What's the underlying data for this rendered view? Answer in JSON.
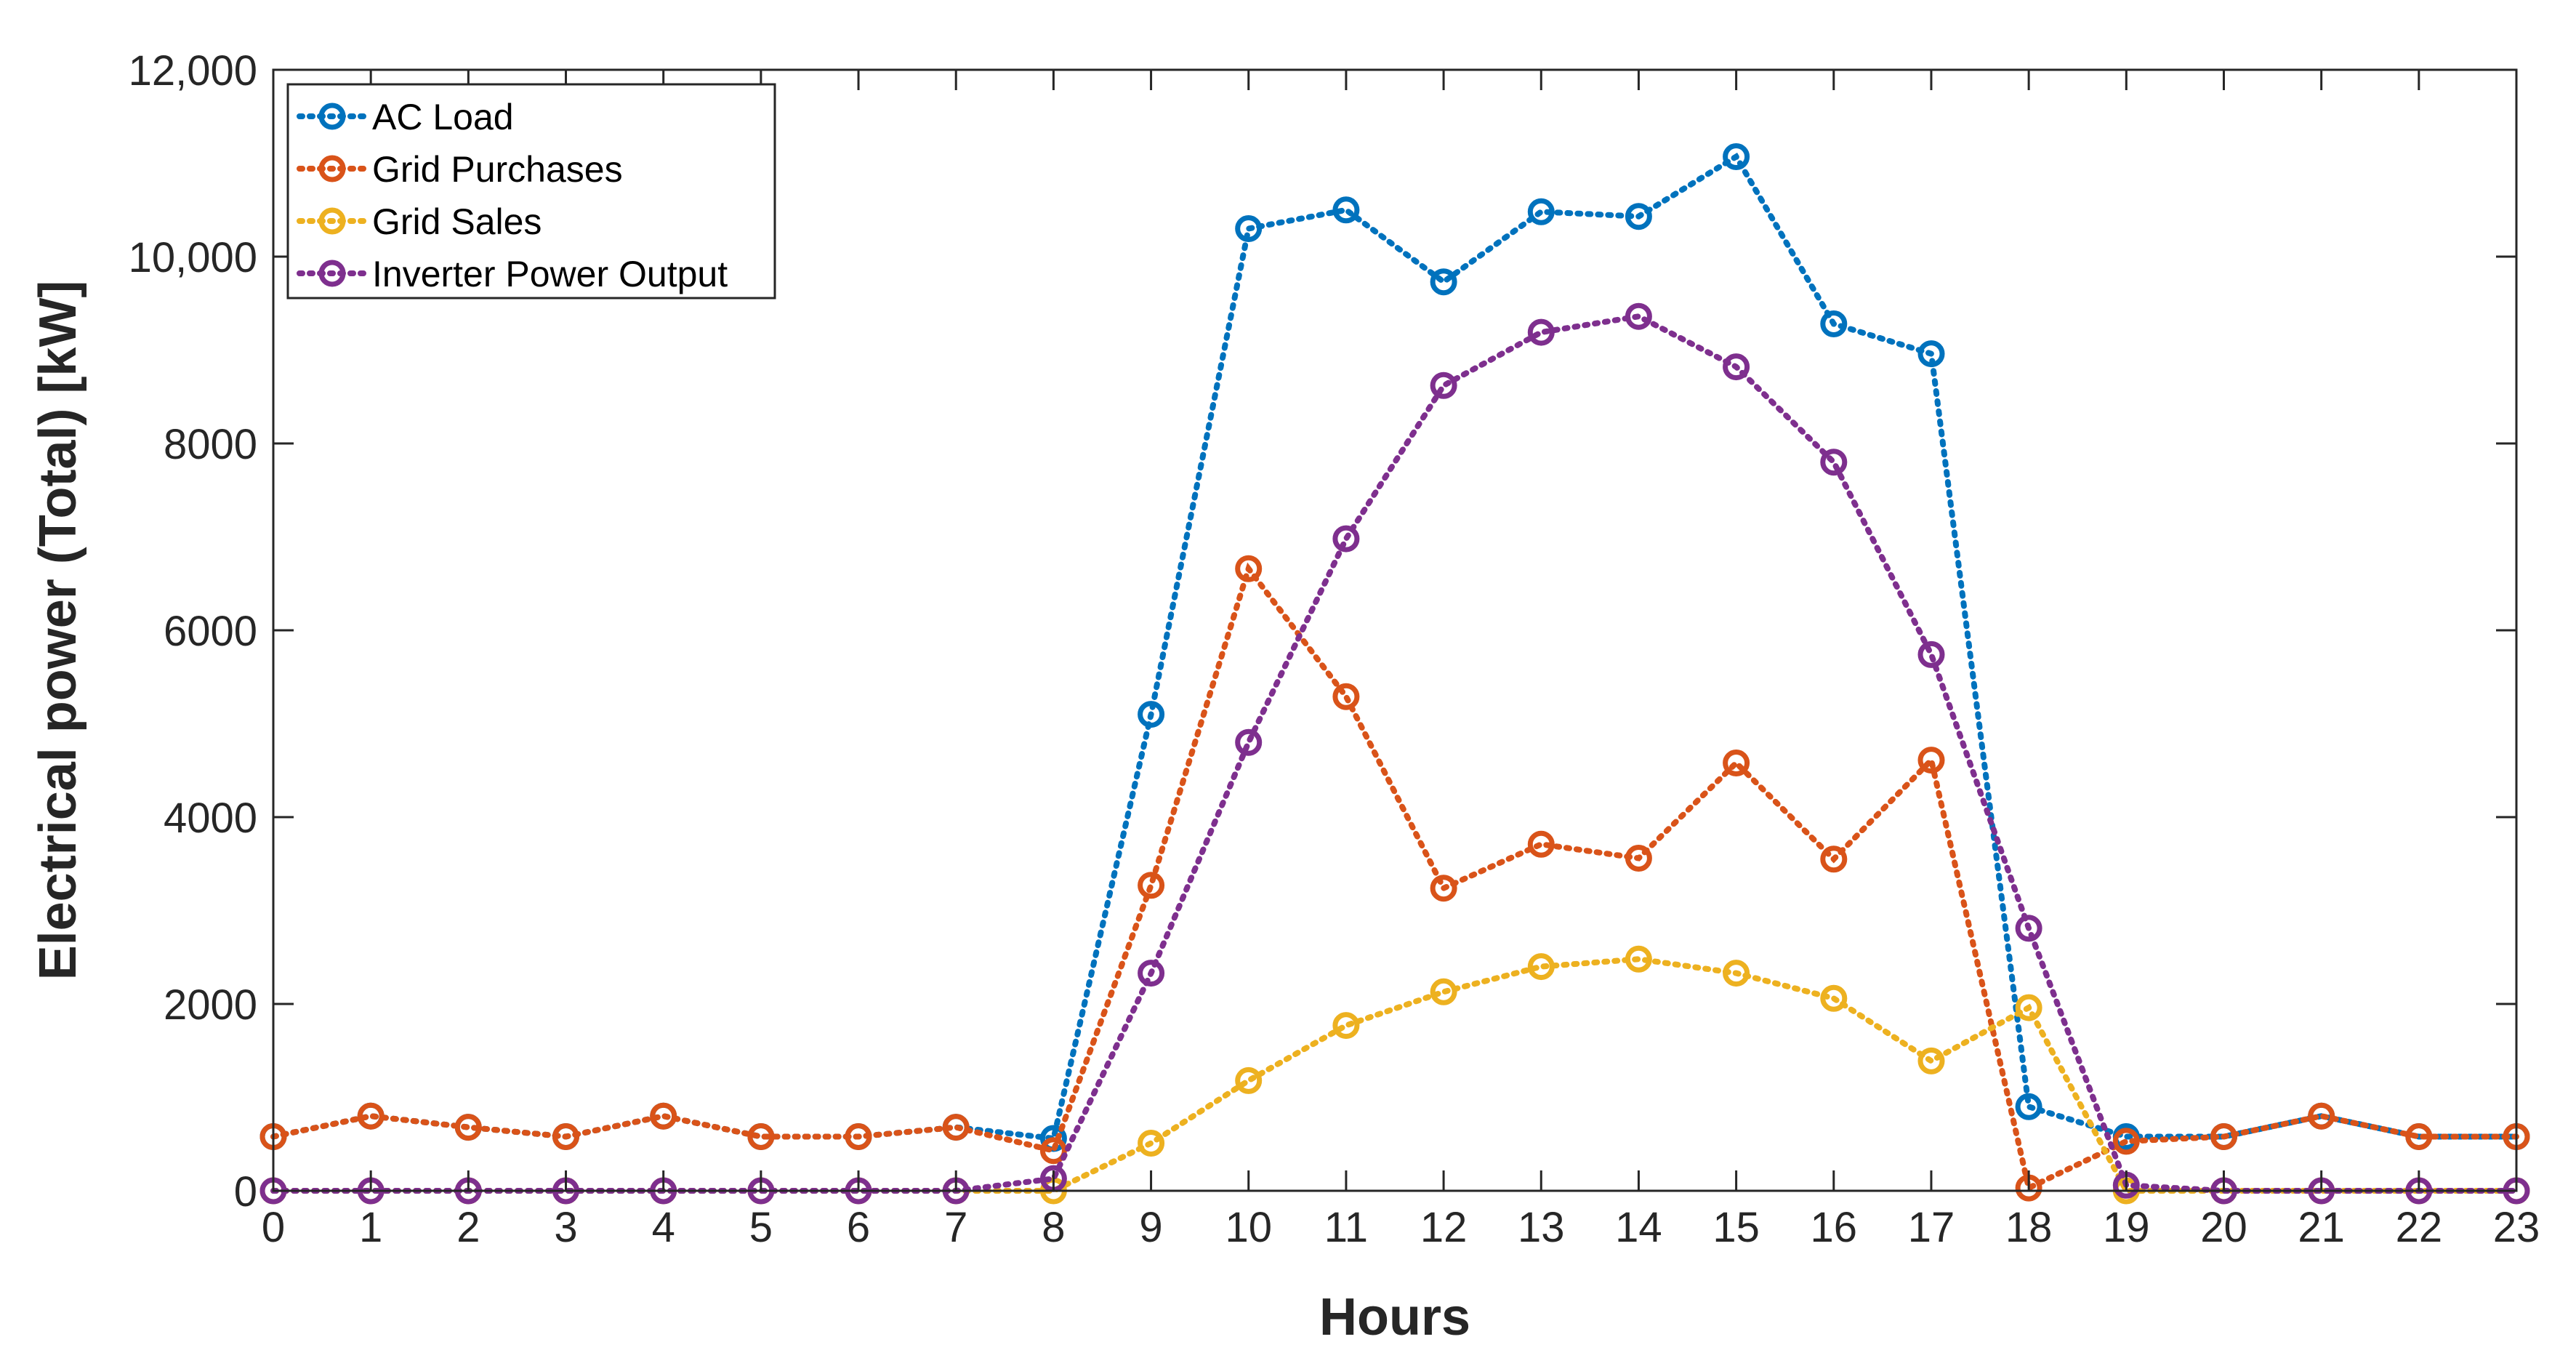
{
  "chart_data": {
    "type": "line",
    "xlabel": "Hours",
    "ylabel": "Electrical power (Total) [kW]",
    "xlim": [
      0,
      23
    ],
    "ylim": [
      0,
      12000
    ],
    "x": [
      0,
      1,
      2,
      3,
      4,
      5,
      6,
      7,
      8,
      9,
      10,
      11,
      12,
      13,
      14,
      15,
      16,
      17,
      18,
      19,
      20,
      21,
      22,
      23
    ],
    "x_tick_labels": [
      "0",
      "1",
      "2",
      "3",
      "4",
      "5",
      "6",
      "7",
      "8",
      "9",
      "10",
      "11",
      "12",
      "13",
      "14",
      "15",
      "16",
      "17",
      "18",
      "19",
      "20",
      "21",
      "22",
      "23"
    ],
    "y_ticks": [
      0,
      2000,
      4000,
      6000,
      8000,
      10000,
      12000
    ],
    "y_tick_labels": [
      "0",
      "2000",
      "4000",
      "6000",
      "8000",
      "10,000",
      "12,000"
    ],
    "grid": false,
    "legend_position": "top-left",
    "marker": "circle",
    "line_style": "dotted",
    "series": [
      {
        "name": "AC Load",
        "color": "#0072BD",
        "values": [
          580,
          800,
          680,
          580,
          800,
          580,
          580,
          680,
          560,
          5100,
          10300,
          10500,
          9730,
          10480,
          10430,
          11070,
          9280,
          8960,
          900,
          580,
          580,
          800,
          580,
          580
        ]
      },
      {
        "name": "Grid Purchases",
        "color": "#D95319",
        "values": [
          580,
          800,
          680,
          580,
          800,
          580,
          580,
          680,
          430,
          3270,
          6660,
          5290,
          3240,
          3710,
          3560,
          4580,
          3550,
          4610,
          30,
          530,
          580,
          800,
          580,
          580
        ]
      },
      {
        "name": "Grid Sales",
        "color": "#EDB120",
        "values": [
          0,
          0,
          0,
          0,
          0,
          0,
          0,
          0,
          0,
          510,
          1180,
          1770,
          2130,
          2400,
          2480,
          2330,
          2060,
          1390,
          1960,
          0,
          0,
          0,
          0,
          0
        ]
      },
      {
        "name": "Inverter Power Output",
        "color": "#7E2F8E",
        "values": [
          0,
          0,
          0,
          0,
          0,
          0,
          0,
          0,
          130,
          2330,
          4800,
          6980,
          8620,
          9190,
          9360,
          8820,
          7800,
          5740,
          2810,
          60,
          0,
          0,
          0,
          0
        ]
      }
    ]
  }
}
